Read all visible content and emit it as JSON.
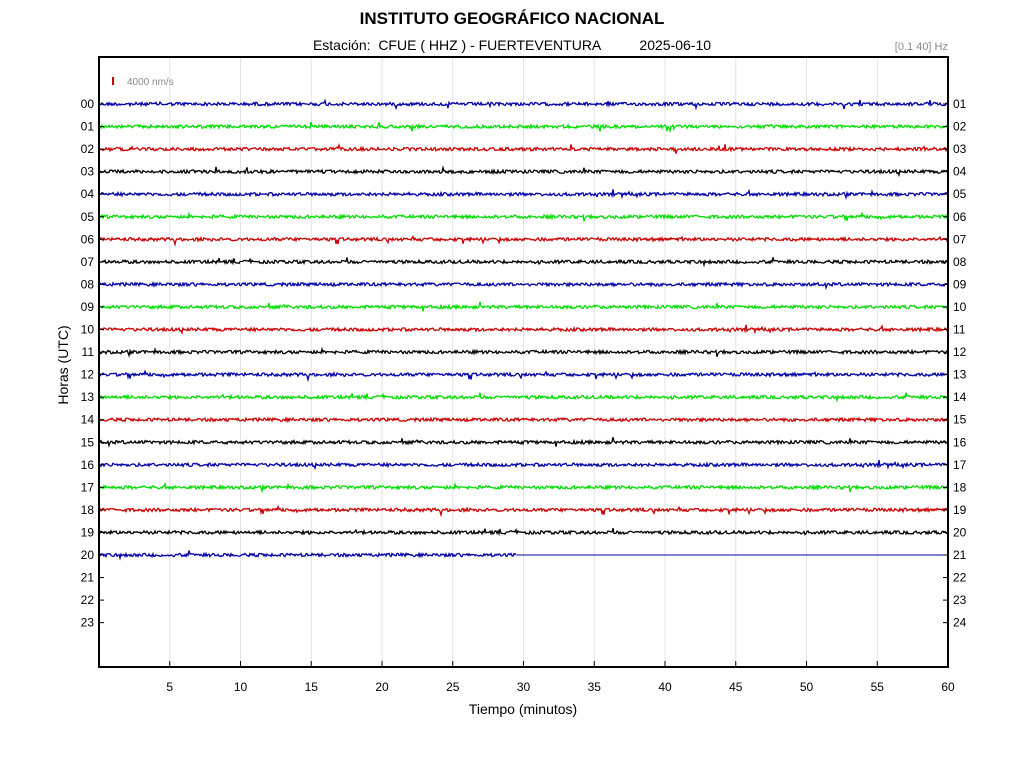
{
  "header": {
    "title": "INSTITUTO GEOGRÁFICO NACIONAL",
    "subtitle_station_label": "Estación:",
    "subtitle_station": "CFUE ( HHZ ) - FUERTEVENTURA",
    "subtitle_date": "2025-06-10",
    "filter": "[0.1 40] Hz"
  },
  "chart_data": {
    "type": "line",
    "title": "INSTITUTO GEOGRÁFICO NACIONAL",
    "xlabel": "Tiempo (minutos)",
    "ylabel": "Horas (UTC)",
    "xlim": [
      0,
      60
    ],
    "x_ticks": [
      "5",
      "10",
      "15",
      "20",
      "25",
      "30",
      "35",
      "40",
      "45",
      "50",
      "55",
      "60"
    ],
    "x_tick_values": [
      5,
      10,
      15,
      20,
      25,
      30,
      35,
      40,
      45,
      50,
      55,
      60
    ],
    "y_ticks_left": [
      "00",
      "01",
      "02",
      "03",
      "04",
      "05",
      "06",
      "07",
      "08",
      "09",
      "10",
      "11",
      "12",
      "13",
      "14",
      "15",
      "16",
      "17",
      "18",
      "19",
      "20",
      "21",
      "22",
      "23"
    ],
    "y_ticks_right": [
      "01",
      "02",
      "03",
      "04",
      "05",
      "06",
      "07",
      "08",
      "09",
      "10",
      "11",
      "12",
      "13",
      "14",
      "15",
      "16",
      "17",
      "18",
      "19",
      "20",
      "21",
      "22",
      "23",
      "24"
    ],
    "grid": "x",
    "scale_bar_label": "4000 nm/s",
    "scale_bar_color": "#cc0000",
    "trace_colors": [
      "#0000aa",
      "#00dd00",
      "#cc0000",
      "#000000"
    ],
    "traces": [
      {
        "hour": "00",
        "color": "#0000aa",
        "end_minute": 60
      },
      {
        "hour": "01",
        "color": "#00dd00",
        "end_minute": 60
      },
      {
        "hour": "02",
        "color": "#cc0000",
        "end_minute": 60
      },
      {
        "hour": "03",
        "color": "#000000",
        "end_minute": 60
      },
      {
        "hour": "04",
        "color": "#0000aa",
        "end_minute": 60
      },
      {
        "hour": "05",
        "color": "#00dd00",
        "end_minute": 60
      },
      {
        "hour": "06",
        "color": "#cc0000",
        "end_minute": 60
      },
      {
        "hour": "07",
        "color": "#000000",
        "end_minute": 60
      },
      {
        "hour": "08",
        "color": "#0000aa",
        "end_minute": 60
      },
      {
        "hour": "09",
        "color": "#00dd00",
        "end_minute": 60
      },
      {
        "hour": "10",
        "color": "#cc0000",
        "end_minute": 60
      },
      {
        "hour": "11",
        "color": "#000000",
        "end_minute": 60
      },
      {
        "hour": "12",
        "color": "#0000aa",
        "end_minute": 60
      },
      {
        "hour": "13",
        "color": "#00dd00",
        "end_minute": 60
      },
      {
        "hour": "14",
        "color": "#cc0000",
        "end_minute": 60
      },
      {
        "hour": "15",
        "color": "#000000",
        "end_minute": 60
      },
      {
        "hour": "16",
        "color": "#0000aa",
        "end_minute": 60
      },
      {
        "hour": "17",
        "color": "#00dd00",
        "end_minute": 60
      },
      {
        "hour": "18",
        "color": "#cc0000",
        "end_minute": 60
      },
      {
        "hour": "19",
        "color": "#000000",
        "end_minute": 60
      },
      {
        "hour": "20",
        "color": "#0000aa",
        "end_minute": 29.5
      }
    ]
  }
}
